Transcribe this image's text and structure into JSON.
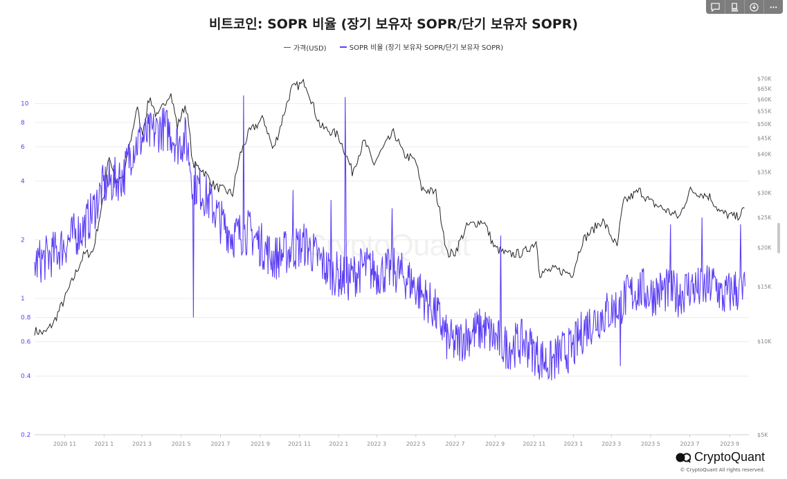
{
  "toolbar": {
    "buttons": [
      {
        "name": "comment-icon"
      },
      {
        "name": "document-icon"
      },
      {
        "name": "download-icon"
      },
      {
        "name": "more-icon"
      }
    ]
  },
  "watermark": "CryptoQuant",
  "brand": {
    "name": "CryptoQuant",
    "copyright": "© CryptoQuant All rights reserved."
  },
  "colors": {
    "sopr": "#5b3df5",
    "price": "#222222",
    "grid": "#ececec",
    "left_axis_text": "#5b3df5",
    "right_axis_text": "#888888"
  },
  "chart_data": {
    "type": "line",
    "title": "비트코인: SOPR 비율 (장기 보유자 SOPR/단기 보유자 SOPR)",
    "legend": [
      {
        "name": "가격(USD)",
        "color": "#222222"
      },
      {
        "name": "SOPR 비율 (장기 보유자 SOPR/단기 보유자 SOPR)",
        "color": "#5b3df5"
      }
    ],
    "x_range": [
      "2020-09-15",
      "2023-10-01"
    ],
    "x_ticks": [
      {
        "label": "2020 11",
        "date": "2020-11-01"
      },
      {
        "label": "2021 1",
        "date": "2021-01-01"
      },
      {
        "label": "2021 3",
        "date": "2021-03-01"
      },
      {
        "label": "2021 5",
        "date": "2021-05-01"
      },
      {
        "label": "2021 7",
        "date": "2021-07-01"
      },
      {
        "label": "2021 9",
        "date": "2021-09-01"
      },
      {
        "label": "2021 11",
        "date": "2021-11-01"
      },
      {
        "label": "2022 1",
        "date": "2022-01-01"
      },
      {
        "label": "2022 3",
        "date": "2022-03-01"
      },
      {
        "label": "2022 5",
        "date": "2022-05-01"
      },
      {
        "label": "2022 7",
        "date": "2022-07-01"
      },
      {
        "label": "2022 9",
        "date": "2022-09-01"
      },
      {
        "label": "2022 11",
        "date": "2022-11-01"
      },
      {
        "label": "2023 1",
        "date": "2023-01-01"
      },
      {
        "label": "2023 3",
        "date": "2023-03-01"
      },
      {
        "label": "2023 5",
        "date": "2023-05-01"
      },
      {
        "label": "2023 7",
        "date": "2023-07-01"
      },
      {
        "label": "2023 9",
        "date": "2023-09-01"
      }
    ],
    "left_axis": {
      "scale": "log",
      "range": [
        0.2,
        15
      ],
      "ticks": [
        {
          "label": "0.2",
          "value": 0.2
        },
        {
          "label": "0.4",
          "value": 0.4
        },
        {
          "label": "0.6",
          "value": 0.6
        },
        {
          "label": "0.8",
          "value": 0.8
        },
        {
          "label": "1",
          "value": 1
        },
        {
          "label": "2",
          "value": 2
        },
        {
          "label": "4",
          "value": 4
        },
        {
          "label": "6",
          "value": 6
        },
        {
          "label": "8",
          "value": 8
        },
        {
          "label": "10",
          "value": 10
        }
      ]
    },
    "right_axis": {
      "scale": "log",
      "range": [
        5000,
        75000
      ],
      "ticks": [
        {
          "label": "$5K",
          "value": 5000
        },
        {
          "label": "$10K",
          "value": 10000
        },
        {
          "label": "$15K",
          "value": 15000
        },
        {
          "label": "$20K",
          "value": 20000
        },
        {
          "label": "$25K",
          "value": 25000
        },
        {
          "label": "$30K",
          "value": 30000
        },
        {
          "label": "$35K",
          "value": 35000
        },
        {
          "label": "$40K",
          "value": 40000
        },
        {
          "label": "$45K",
          "value": 45000
        },
        {
          "label": "$50K",
          "value": 50000
        },
        {
          "label": "$55K",
          "value": 55000
        },
        {
          "label": "$60K",
          "value": 60000
        },
        {
          "label": "$65K",
          "value": 65000
        },
        {
          "label": "$70K",
          "value": 70000
        }
      ]
    },
    "series": [
      {
        "name": "가격(USD)",
        "axis": "right",
        "points": [
          [
            "2020-09-15",
            10800
          ],
          [
            "2020-10-01",
            10600
          ],
          [
            "2020-10-15",
            11500
          ],
          [
            "2020-11-01",
            13700
          ],
          [
            "2020-11-15",
            16000
          ],
          [
            "2020-12-01",
            19000
          ],
          [
            "2020-12-15",
            19400
          ],
          [
            "2021-01-01",
            29000
          ],
          [
            "2021-01-08",
            40000
          ],
          [
            "2021-01-20",
            32000
          ],
          [
            "2021-02-01",
            34000
          ],
          [
            "2021-02-15",
            48000
          ],
          [
            "2021-02-21",
            57000
          ],
          [
            "2021-03-01",
            46000
          ],
          [
            "2021-03-13",
            61000
          ],
          [
            "2021-03-25",
            52000
          ],
          [
            "2021-04-14",
            63500
          ],
          [
            "2021-04-25",
            49000
          ],
          [
            "2021-05-08",
            58000
          ],
          [
            "2021-05-19",
            37000
          ],
          [
            "2021-06-01",
            36000
          ],
          [
            "2021-06-22",
            31500
          ],
          [
            "2021-07-20",
            29800
          ],
          [
            "2021-08-01",
            40000
          ],
          [
            "2021-08-15",
            47000
          ],
          [
            "2021-09-06",
            52000
          ],
          [
            "2021-09-21",
            41000
          ],
          [
            "2021-10-01",
            48000
          ],
          [
            "2021-10-20",
            65000
          ],
          [
            "2021-11-10",
            68000
          ],
          [
            "2021-11-26",
            54000
          ],
          [
            "2021-12-04",
            49000
          ],
          [
            "2021-12-31",
            46000
          ],
          [
            "2022-01-22",
            35000
          ],
          [
            "2022-02-10",
            44000
          ],
          [
            "2022-02-24",
            37000
          ],
          [
            "2022-03-28",
            47000
          ],
          [
            "2022-04-11",
            40000
          ],
          [
            "2022-05-01",
            38000
          ],
          [
            "2022-05-09",
            31000
          ],
          [
            "2022-06-01",
            30000
          ],
          [
            "2022-06-13",
            22500
          ],
          [
            "2022-06-18",
            19000
          ],
          [
            "2022-07-01",
            19300
          ],
          [
            "2022-07-20",
            23500
          ],
          [
            "2022-08-14",
            24400
          ],
          [
            "2022-08-31",
            20000
          ],
          [
            "2022-09-20",
            19000
          ],
          [
            "2022-10-15",
            19200
          ],
          [
            "2022-11-05",
            21000
          ],
          [
            "2022-11-09",
            16500
          ],
          [
            "2022-12-01",
            17000
          ],
          [
            "2022-12-31",
            16500
          ],
          [
            "2023-01-15",
            21000
          ],
          [
            "2023-02-15",
            24500
          ],
          [
            "2023-03-10",
            20000
          ],
          [
            "2023-03-20",
            28000
          ],
          [
            "2023-04-14",
            30500
          ],
          [
            "2023-05-01",
            28000
          ],
          [
            "2023-06-15",
            25000
          ],
          [
            "2023-07-01",
            30500
          ],
          [
            "2023-07-15",
            30000
          ],
          [
            "2023-08-01",
            29200
          ],
          [
            "2023-08-17",
            26000
          ],
          [
            "2023-09-11",
            25000
          ],
          [
            "2023-09-25",
            26500
          ]
        ]
      },
      {
        "name": "SOPR 비율 (장기 보유자 SOPR/단기 보유자 SOPR)",
        "axis": "left",
        "points": [
          [
            "2020-09-15",
            1.5
          ],
          [
            "2020-10-01",
            1.6
          ],
          [
            "2020-10-15",
            1.7
          ],
          [
            "2020-11-01",
            1.9
          ],
          [
            "2020-11-15",
            2.1
          ],
          [
            "2020-12-01",
            2.3
          ],
          [
            "2020-12-15",
            2.8
          ],
          [
            "2021-01-01",
            3.8
          ],
          [
            "2021-01-15",
            4.0
          ],
          [
            "2021-02-01",
            4.3
          ],
          [
            "2021-02-15",
            6.0
          ],
          [
            "2021-03-01",
            6.6
          ],
          [
            "2021-03-15",
            7.0
          ],
          [
            "2021-04-01",
            7.5
          ],
          [
            "2021-04-14",
            7.2
          ],
          [
            "2021-04-25",
            6.2
          ],
          [
            "2021-05-08",
            6.6
          ],
          [
            "2021-05-19",
            4.0
          ],
          [
            "2021-06-01",
            3.6
          ],
          [
            "2021-06-15",
            3.1
          ],
          [
            "2021-07-01",
            2.5
          ],
          [
            "2021-07-20",
            2.1
          ],
          [
            "2021-08-15",
            2.2
          ],
          [
            "2021-09-01",
            1.9
          ],
          [
            "2021-09-21",
            1.6
          ],
          [
            "2021-10-15",
            1.75
          ],
          [
            "2021-11-10",
            1.9
          ],
          [
            "2021-11-26",
            1.65
          ],
          [
            "2021-12-15",
            1.4
          ],
          [
            "2022-01-15",
            1.25
          ],
          [
            "2022-02-10",
            1.45
          ],
          [
            "2022-03-01",
            1.35
          ],
          [
            "2022-03-28",
            1.4
          ],
          [
            "2022-04-20",
            1.25
          ],
          [
            "2022-05-10",
            1.05
          ],
          [
            "2022-06-01",
            0.85
          ],
          [
            "2022-06-18",
            0.62
          ],
          [
            "2022-07-01",
            0.58
          ],
          [
            "2022-07-20",
            0.65
          ],
          [
            "2022-08-14",
            0.7
          ],
          [
            "2022-09-01",
            0.62
          ],
          [
            "2022-09-20",
            0.56
          ],
          [
            "2022-10-15",
            0.6
          ],
          [
            "2022-11-09",
            0.5
          ],
          [
            "2022-11-25",
            0.46
          ],
          [
            "2022-12-15",
            0.53
          ],
          [
            "2023-01-01",
            0.55
          ],
          [
            "2023-01-20",
            0.72
          ],
          [
            "2023-02-15",
            0.82
          ],
          [
            "2023-03-10",
            0.9
          ],
          [
            "2023-03-25",
            1.02
          ],
          [
            "2023-04-14",
            1.12
          ],
          [
            "2023-05-01",
            1.05
          ],
          [
            "2023-05-20",
            1.1
          ],
          [
            "2023-06-15",
            1.05
          ],
          [
            "2023-07-01",
            1.15
          ],
          [
            "2023-07-20",
            1.1
          ],
          [
            "2023-08-10",
            1.2
          ],
          [
            "2023-08-20",
            1.0
          ],
          [
            "2023-09-10",
            1.12
          ],
          [
            "2023-09-20",
            1.05
          ],
          [
            "2023-09-25",
            1.1
          ]
        ],
        "spikes": [
          [
            "2021-05-20",
            0.8
          ],
          [
            "2021-06-25",
            3.2
          ],
          [
            "2021-08-06",
            11.0
          ],
          [
            "2021-10-22",
            3.6
          ],
          [
            "2021-12-20",
            3.2
          ],
          [
            "2022-01-11",
            10.8
          ],
          [
            "2022-01-12",
            4.2
          ],
          [
            "2022-03-25",
            2.9
          ],
          [
            "2022-06-02",
            0.7
          ],
          [
            "2022-09-10",
            2.1
          ],
          [
            "2022-10-25",
            0.65
          ],
          [
            "2023-03-15",
            0.45
          ],
          [
            "2023-06-01",
            2.4
          ],
          [
            "2023-07-20",
            2.6
          ],
          [
            "2023-09-18",
            2.4
          ]
        ]
      }
    ]
  }
}
